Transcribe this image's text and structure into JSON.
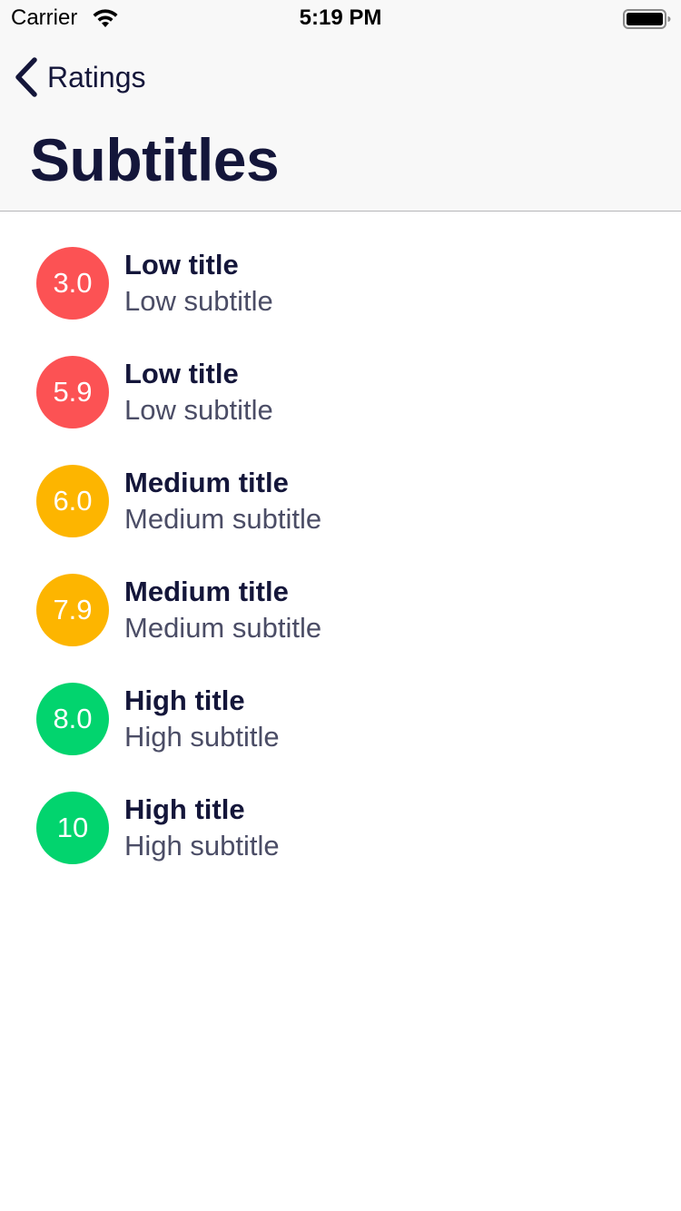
{
  "status_bar": {
    "carrier": "Carrier",
    "time": "5:19 PM"
  },
  "nav": {
    "back_label": "Ratings",
    "title": "Subtitles"
  },
  "colors": {
    "low": "#fc5254",
    "medium": "#fdb500",
    "high": "#02d46e"
  },
  "rows": [
    {
      "rating": "3.0",
      "level": "low",
      "title": "Low title",
      "subtitle": "Low subtitle"
    },
    {
      "rating": "5.9",
      "level": "low",
      "title": "Low title",
      "subtitle": "Low subtitle"
    },
    {
      "rating": "6.0",
      "level": "medium",
      "title": "Medium title",
      "subtitle": "Medium subtitle"
    },
    {
      "rating": "7.9",
      "level": "medium",
      "title": "Medium title",
      "subtitle": "Medium subtitle"
    },
    {
      "rating": "8.0",
      "level": "high",
      "title": "High title",
      "subtitle": "High subtitle"
    },
    {
      "rating": "10",
      "level": "high",
      "title": "High title",
      "subtitle": "High subtitle"
    }
  ]
}
